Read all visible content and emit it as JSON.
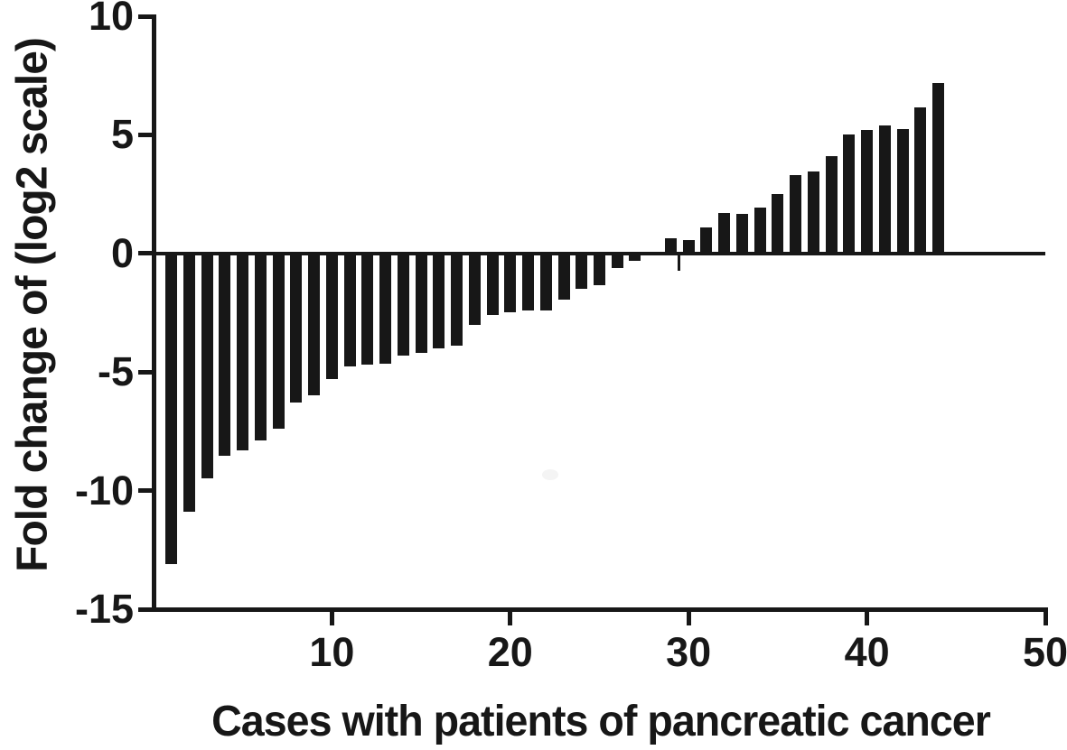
{
  "figure": {
    "background": "#ffffff",
    "ink_color": "#171717"
  },
  "chart_data": {
    "type": "bar",
    "title": "",
    "xlabel": "Cases with patients of pancreatic cancer",
    "ylabel": "Fold change of (log2 scale)",
    "bar_color": "#171717",
    "grid": false,
    "legend": null,
    "xlim": [
      0,
      50
    ],
    "ylim": [
      -15,
      10
    ],
    "yticks": [
      10,
      5,
      0,
      -5,
      -10,
      -15
    ],
    "ytick_labels": [
      "10",
      "5",
      "0",
      "-5",
      "-10",
      "-15"
    ],
    "xticks": [
      10,
      20,
      30,
      40,
      50
    ],
    "xtick_labels": [
      "10",
      "20",
      "30",
      "40",
      "50"
    ],
    "cases": [
      1,
      2,
      3,
      4,
      5,
      6,
      7,
      8,
      9,
      10,
      11,
      12,
      13,
      14,
      15,
      16,
      17,
      18,
      19,
      20,
      21,
      22,
      23,
      24,
      25,
      26,
      27,
      28,
      29,
      30,
      31,
      32,
      33,
      34,
      35,
      36,
      37,
      38,
      39,
      40,
      41,
      42,
      43,
      44
    ],
    "values": [
      -13.1,
      -10.9,
      -9.5,
      -8.55,
      -8.3,
      -7.9,
      -7.4,
      -6.3,
      -6.0,
      -5.3,
      -4.75,
      -4.7,
      -4.65,
      -4.3,
      -4.2,
      -4.0,
      -3.9,
      -3.0,
      -2.6,
      -2.5,
      -2.4,
      -2.4,
      -1.95,
      -1.5,
      -1.35,
      -0.6,
      -0.3,
      0,
      0.65,
      0.57,
      1.1,
      1.7,
      1.67,
      1.95,
      2.5,
      3.3,
      3.45,
      4.1,
      5.0,
      5.2,
      5.4,
      5.25,
      6.15,
      7.2
    ],
    "artifact_spike": {
      "x_case": 29.7,
      "value": -0.72
    }
  }
}
